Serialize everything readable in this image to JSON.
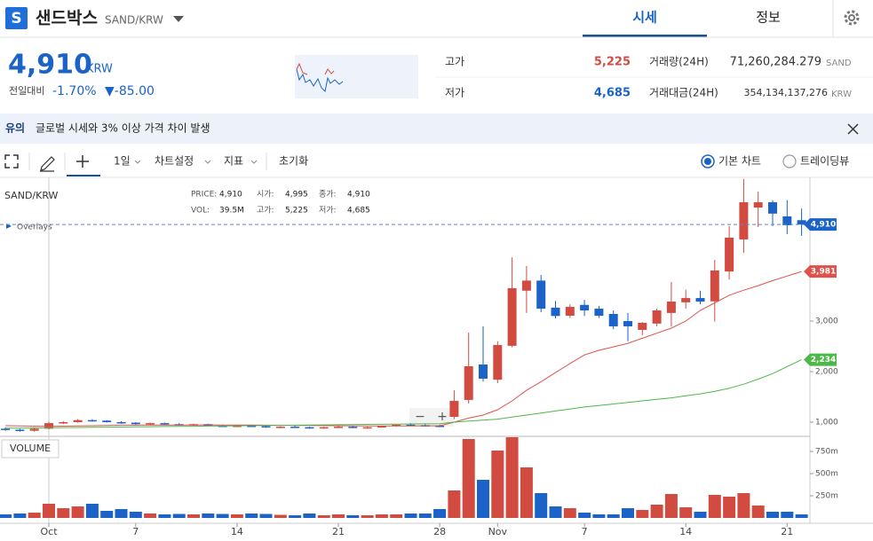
{
  "header": {
    "logo": "S",
    "name": "샌드박스",
    "symbol": "SAND/KRW",
    "tabs": [
      "시세",
      "정보"
    ]
  },
  "summary": {
    "price": "4,910",
    "currency": "KRW",
    "change_label": "전일대비",
    "change_pct": "-1.70%",
    "change": "▼-85.00",
    "stats": [
      {
        "label": "고가",
        "value": "5,225"
      },
      {
        "label": "저가",
        "value": "4,685"
      },
      {
        "label": "거래량(24H)",
        "value": "71,260,284.279",
        "unit": "SAND"
      },
      {
        "label": "거래대금(24H)",
        "value": "354,134,137,276",
        "unit": "KRW"
      }
    ]
  },
  "notice": {
    "tag": "유의",
    "text": "글로벌 시세와 3% 이상 가격 차이 발생"
  },
  "toolbar": {
    "items": [
      "1일",
      "차트설정",
      "지표",
      "초기화"
    ],
    "options": [
      "기본 차트",
      "트레이딩뷰"
    ]
  },
  "chart_data": {
    "type": "candlestick",
    "title": "SAND/KRW",
    "overlays": "Overlays",
    "volume_title": "VOLUME",
    "zoom": [
      "−",
      "+"
    ],
    "info": [
      {
        "label": "PRICE:",
        "value": "4,910"
      },
      {
        "label": "시가:",
        "value": "4,995"
      },
      {
        "label": "종가:",
        "value": "4,910"
      },
      {
        "label": "VOL:",
        "value": "39.5M"
      },
      {
        "label": "고가:",
        "value": "5,225"
      },
      {
        "label": "저가:",
        "value": "4,685"
      }
    ],
    "categories": [
      null,
      null,
      null,
      "Oct",
      null,
      null,
      null,
      null,
      null,
      "7",
      null,
      null,
      null,
      null,
      null,
      null,
      "14",
      null,
      null,
      null,
      null,
      null,
      null,
      "21",
      null,
      null,
      null,
      null,
      null,
      null,
      "28",
      null,
      null,
      null,
      "Nov",
      null,
      null,
      null,
      null,
      null,
      "7",
      null,
      null,
      null,
      null,
      null,
      null,
      "14",
      null,
      null,
      null,
      null,
      null,
      null,
      "21",
      null
    ],
    "open": [
      870,
      850,
      830,
      870,
      980,
      1000,
      1040,
      1030,
      1000,
      990,
      960,
      980,
      960,
      950,
      960,
      930,
      920,
      930,
      920,
      900,
      910,
      900,
      880,
      900,
      910,
      890,
      900,
      920,
      950,
      940,
      930,
      1105,
      1440,
      2140,
      1840,
      2510,
      3600,
      3800,
      3265,
      3105,
      3320,
      3245,
      3140,
      3000,
      2825,
      2950,
      3160,
      3370,
      3455,
      3390,
      3980,
      4615,
      5245,
      5350,
      5070,
      4995
    ],
    "high": [
      900,
      870,
      880,
      1010,
      1020,
      1060,
      1060,
      1040,
      1020,
      1000,
      990,
      990,
      980,
      970,
      970,
      950,
      940,
      950,
      930,
      920,
      930,
      910,
      910,
      930,
      930,
      910,
      930,
      960,
      980,
      960,
      950,
      1630,
      2770,
      2895,
      2600,
      4260,
      4090,
      3910,
      3400,
      3330,
      3420,
      3300,
      3210,
      3160,
      2980,
      3245,
      3770,
      3620,
      3600,
      4210,
      4880,
      5810,
      5560,
      5390,
      5390,
      5225
    ],
    "low": [
      830,
      810,
      810,
      860,
      960,
      990,
      1010,
      990,
      970,
      950,
      950,
      950,
      940,
      930,
      920,
      910,
      900,
      910,
      890,
      880,
      890,
      870,
      870,
      890,
      880,
      870,
      890,
      910,
      930,
      910,
      900,
      1060,
      1370,
      1800,
      1770,
      2480,
      3160,
      3175,
      3050,
      3060,
      3100,
      3060,
      2840,
      2600,
      2720,
      2895,
      2890,
      3245,
      3330,
      2990,
      3820,
      4350,
      4860,
      4880,
      4720,
      4685
    ],
    "close": [
      850,
      830,
      870,
      980,
      1000,
      1040,
      1030,
      1000,
      990,
      960,
      980,
      960,
      950,
      960,
      930,
      920,
      930,
      920,
      900,
      910,
      900,
      880,
      900,
      910,
      890,
      900,
      920,
      950,
      940,
      930,
      910,
      1420,
      2105,
      1860,
      2525,
      3650,
      3800,
      3245,
      3100,
      3280,
      3210,
      3105,
      2895,
      2895,
      2965,
      3210,
      3385,
      3455,
      3385,
      4000,
      4650,
      5350,
      5350,
      5125,
      4895,
      4910
    ],
    "last_label": "4,910",
    "volume": [
      40000000,
      50000000,
      60000000,
      160000000,
      110000000,
      130000000,
      160000000,
      80000000,
      100000000,
      70000000,
      50000000,
      40000000,
      45000000,
      40000000,
      50000000,
      45000000,
      40000000,
      50000000,
      45000000,
      35000000,
      30000000,
      50000000,
      30000000,
      40000000,
      30000000,
      30000000,
      40000000,
      40000000,
      50000000,
      50000000,
      100000000,
      310000000,
      890000000,
      430000000,
      760000000,
      910000000,
      570000000,
      280000000,
      130000000,
      110000000,
      60000000,
      40000000,
      40000000,
      110000000,
      90000000,
      150000000,
      270000000,
      120000000,
      70000000,
      260000000,
      240000000,
      280000000,
      140000000,
      70000000,
      70000000,
      40000000
    ],
    "up_color": "#d24b41",
    "down_color": "#1b63c6",
    "ma": [
      {
        "color": "#e0514c",
        "last_label": "3,981",
        "values": [
          930,
          925,
          920,
          918,
          920,
          925,
          930,
          935,
          940,
          940,
          942,
          943,
          944,
          945,
          945,
          944,
          943,
          942,
          940,
          938,
          936,
          934,
          932,
          930,
          928,
          926,
          925,
          925,
          926,
          927,
          928,
          1000,
          1080,
          1140,
          1245,
          1420,
          1630,
          1800,
          1980,
          2160,
          2330,
          2420,
          2490,
          2560,
          2660,
          2760,
          2860,
          3000,
          3210,
          3360,
          3510,
          3610,
          3700,
          3800,
          3890,
          3981
        ]
      },
      {
        "color": "#4cb84a",
        "last_label": "2,234",
        "values": [
          880,
          883,
          886,
          889,
          892,
          895,
          898,
          901,
          904,
          907,
          910,
          913,
          916,
          919,
          922,
          925,
          928,
          931,
          934,
          937,
          940,
          943,
          946,
          949,
          952,
          955,
          958,
          961,
          964,
          967,
          970,
          1000,
          1020,
          1040,
          1060,
          1100,
          1140,
          1180,
          1220,
          1260,
          1300,
          1330,
          1360,
          1390,
          1420,
          1450,
          1480,
          1520,
          1560,
          1610,
          1670,
          1750,
          1850,
          1960,
          2100,
          2234
        ]
      }
    ],
    "ylim": [
      719,
      5842
    ],
    "yticks": [
      {
        "value": 1000,
        "label": "1,000"
      },
      {
        "value": 2000,
        "label": "2,000"
      },
      {
        "value": 3000,
        "label": "3,000"
      }
    ],
    "vlim": [
      -60000000,
      910000000
    ],
    "vticks": [
      {
        "value": 250000000,
        "label": "250m"
      },
      {
        "value": 500000000,
        "label": "500m"
      },
      {
        "value": 750000000,
        "label": "750m"
      }
    ]
  }
}
